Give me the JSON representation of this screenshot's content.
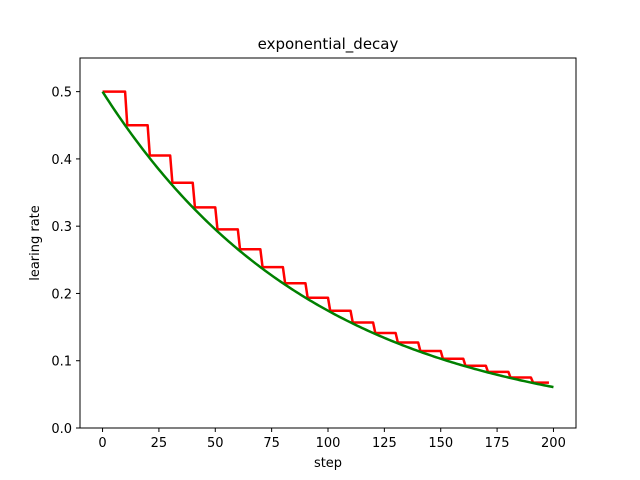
{
  "chart_data": {
    "type": "line",
    "title": "exponential_decay",
    "xlabel": "step",
    "ylabel": "learing rate",
    "xlim": [
      -10,
      210
    ],
    "ylim": [
      0,
      0.55
    ],
    "x_ticks": [
      0,
      25,
      50,
      75,
      100,
      125,
      150,
      175,
      200
    ],
    "x_tick_labels": [
      "0",
      "25",
      "50",
      "75",
      "100",
      "125",
      "150",
      "175",
      "200"
    ],
    "y_ticks": [
      0.0,
      0.1,
      0.2,
      0.3,
      0.4,
      0.5
    ],
    "y_tick_labels": [
      "0.0",
      "0.1",
      "0.2",
      "0.3",
      "0.4",
      "0.5"
    ],
    "grid": false,
    "series": [
      {
        "color": "#ff0000",
        "style": "staircase",
        "x": [
          0,
          10,
          20,
          30,
          40,
          50,
          60,
          70,
          80,
          90,
          100,
          110,
          120,
          130,
          140,
          150,
          160,
          170,
          180,
          190,
          200
        ],
        "y": [
          0.5,
          0.45,
          0.405,
          0.3645,
          0.328,
          0.2952,
          0.2657,
          0.2391,
          0.2152,
          0.1937,
          0.1743,
          0.1569,
          0.1412,
          0.1271,
          0.1144,
          0.1029,
          0.0926,
          0.0834,
          0.075,
          0.0675,
          0.0608
        ]
      },
      {
        "color": "#008000",
        "style": "smooth",
        "x": [
          0,
          10,
          20,
          30,
          40,
          50,
          60,
          70,
          80,
          90,
          100,
          110,
          120,
          130,
          140,
          150,
          160,
          170,
          180,
          190,
          200
        ],
        "y": [
          0.5,
          0.45,
          0.405,
          0.3645,
          0.328,
          0.2952,
          0.2657,
          0.2391,
          0.2152,
          0.1937,
          0.1743,
          0.1569,
          0.1412,
          0.1271,
          0.1144,
          0.1029,
          0.0926,
          0.0834,
          0.075,
          0.0675,
          0.0608
        ]
      }
    ]
  }
}
